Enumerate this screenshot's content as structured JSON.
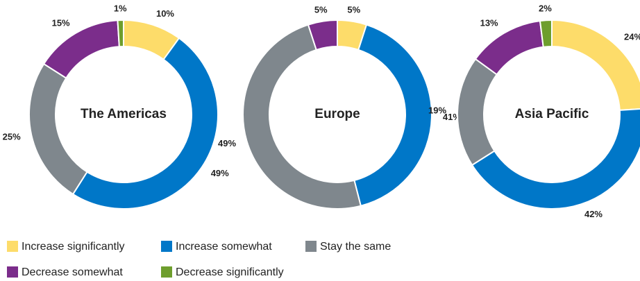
{
  "chart_data": [
    {
      "type": "pie",
      "title": "The Americas",
      "categories": [
        "Increase significantly",
        "Increase somewhat",
        "Stay the same",
        "Decrease somewhat",
        "Decrease significantly"
      ],
      "values": [
        10,
        49,
        25,
        15,
        1
      ],
      "value_labels": [
        "10%",
        "49%",
        "25%",
        "15%",
        "1%"
      ],
      "colors": [
        "#fddc6a",
        "#0077c8",
        "#7f878d",
        "#7b2d8b",
        "#6e9e2d"
      ]
    },
    {
      "type": "pie",
      "title": "Europe",
      "categories": [
        "Increase significantly",
        "Increase somewhat",
        "Stay the same",
        "Decrease somewhat"
      ],
      "values": [
        5,
        41,
        49,
        5
      ],
      "value_labels": [
        "5%",
        "41%",
        "49%",
        "5%"
      ],
      "colors": [
        "#fddc6a",
        "#0077c8",
        "#7f878d",
        "#7b2d8b"
      ]
    },
    {
      "type": "pie",
      "title": "Asia Pacific",
      "categories": [
        "Increase significantly",
        "Increase somewhat",
        "Stay the same",
        "Decrease somewhat",
        "Decrease significantly"
      ],
      "values": [
        24,
        42,
        19,
        13,
        2
      ],
      "value_labels": [
        "24%",
        "42%",
        "19%",
        "13%",
        "2%"
      ],
      "colors": [
        "#fddc6a",
        "#0077c8",
        "#7f878d",
        "#7b2d8b",
        "#6e9e2d"
      ]
    }
  ]
}
